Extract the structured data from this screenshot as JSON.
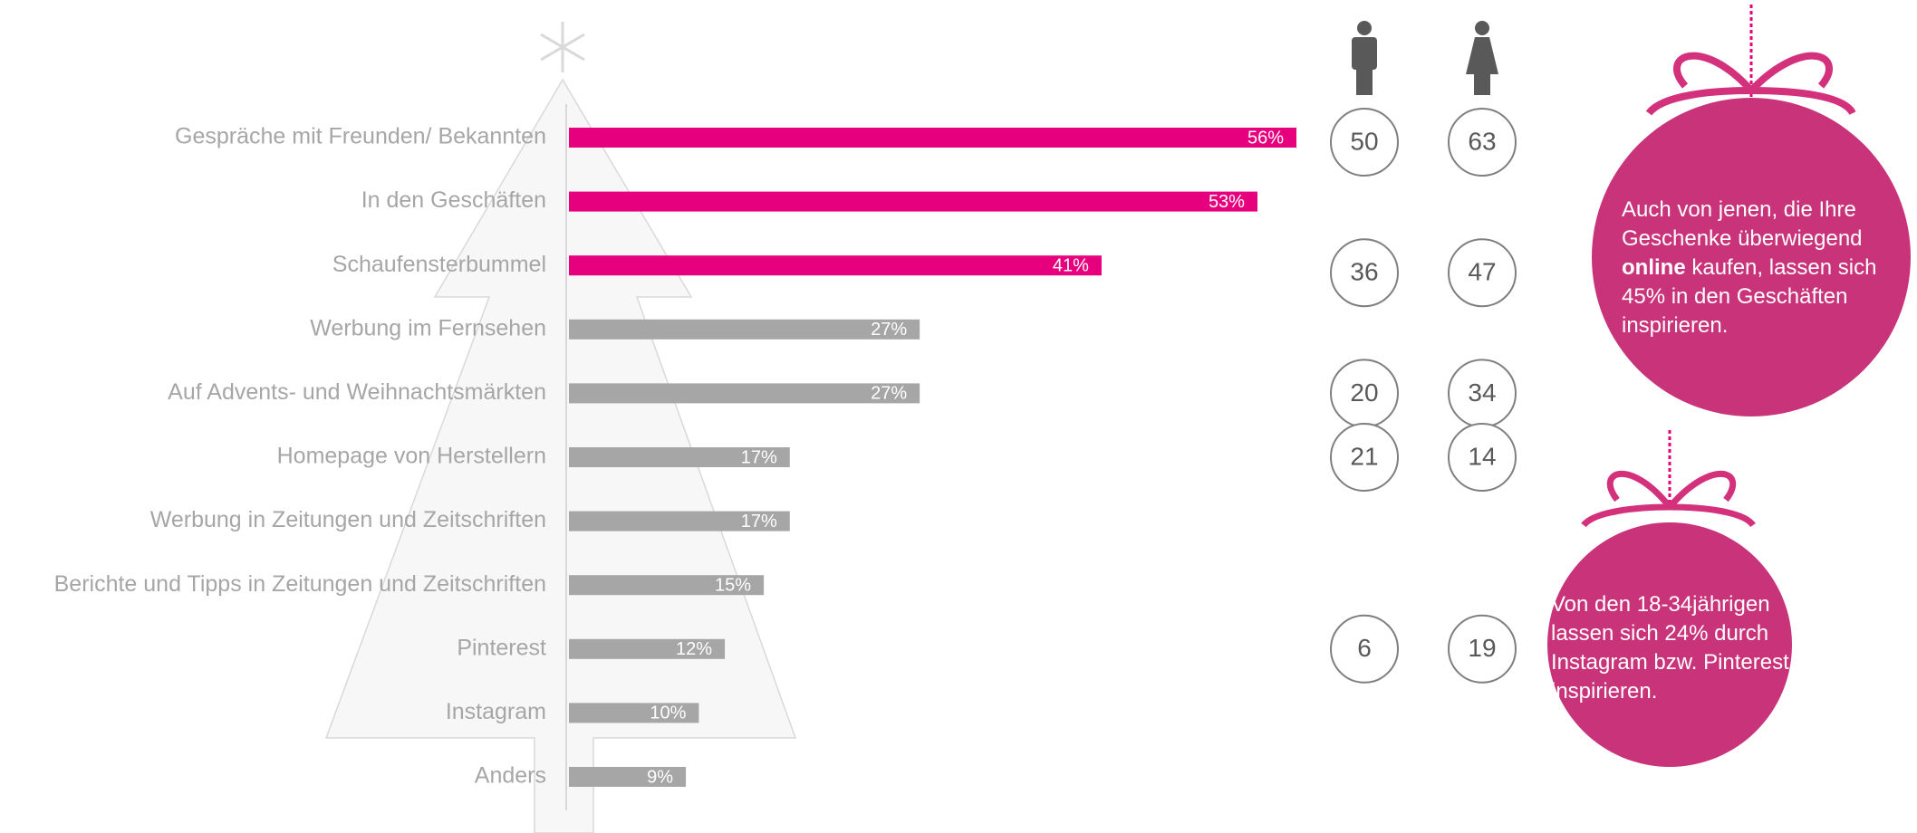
{
  "chart_data": {
    "type": "bar",
    "categories": [
      "Gespräche mit Freunden/ Bekannten",
      "In den Geschäften",
      "Schaufensterbummel",
      "Werbung im Fernsehen",
      "Auf Advents- und Weihnachtsmärkten",
      "Homepage von Herstellern",
      "Werbung in Zeitungen und Zeitschriften",
      "Berichte und Tipps in Zeitungen und Zeitschriften",
      "Pinterest",
      "Instagram",
      "Anders"
    ],
    "values": [
      56,
      53,
      41,
      27,
      27,
      17,
      17,
      15,
      12,
      10,
      9
    ],
    "value_labels": [
      "56%",
      "53%",
      "41%",
      "27%",
      "27%",
      "17%",
      "17%",
      "15%",
      "12%",
      "10%",
      "9%"
    ],
    "colors": [
      "#e6007e",
      "#e6007e",
      "#e6007e",
      "#a6a6a6",
      "#a6a6a6",
      "#a6a6a6",
      "#a6a6a6",
      "#a6a6a6",
      "#a6a6a6",
      "#a6a6a6",
      "#a6a6a6"
    ],
    "men": [
      50,
      null,
      36,
      null,
      20,
      21,
      null,
      null,
      6,
      null,
      null
    ],
    "women": [
      63,
      null,
      47,
      null,
      34,
      14,
      null,
      null,
      19,
      null,
      null
    ],
    "annotations": [
      [
        "Auch von jenen, die Ihre Geschenke überwiegend",
        "online",
        "kaufen, lassen sich 45% in den Geschäften inspirieren."
      ],
      [
        "Von den 18-34jährigen lassen sich 24% durch Instagram bzw. Pinterest inspirieren."
      ]
    ]
  }
}
